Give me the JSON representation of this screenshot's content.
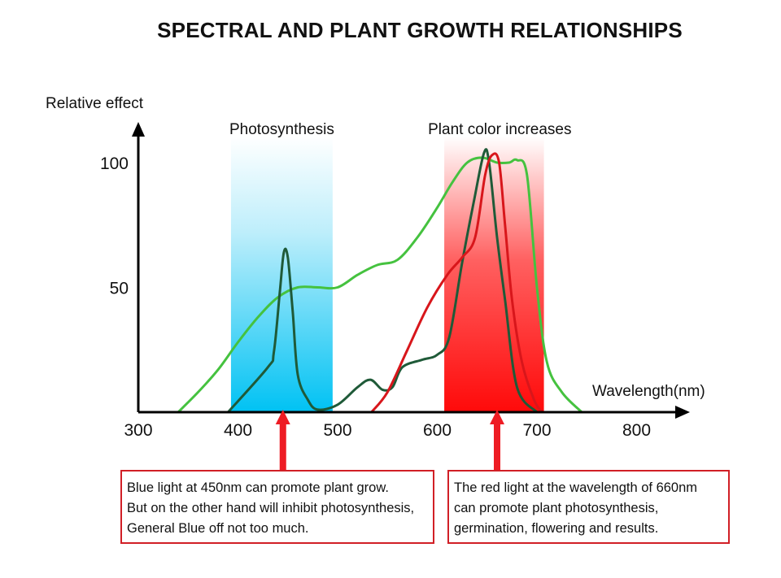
{
  "title": "SPECTRAL AND PLANT GROWTH RELATIONSHIPS",
  "chart_data": {
    "type": "line",
    "title": "SPECTRAL AND PLANT GROWTH RELATIONSHIPS",
    "xlabel": "Wavelength(nm)",
    "ylabel": "Relative effect",
    "xlim": [
      300,
      840
    ],
    "ylim": [
      0,
      110
    ],
    "x_ticks": [
      300,
      400,
      500,
      600,
      700,
      800
    ],
    "y_ticks": [
      50,
      100
    ],
    "bands": [
      {
        "label": "Photosynthesis",
        "range": [
          393,
          495
        ],
        "color": "#10c4f2"
      },
      {
        "label": "Plant color increases",
        "range": [
          607,
          707
        ],
        "color": "#ff1a1a"
      }
    ],
    "series": [
      {
        "name": "light-green",
        "color": "#45c23f",
        "points": [
          [
            340,
            0
          ],
          [
            360,
            8
          ],
          [
            380,
            17
          ],
          [
            400,
            28
          ],
          [
            420,
            38
          ],
          [
            440,
            46
          ],
          [
            460,
            50
          ],
          [
            480,
            50
          ],
          [
            500,
            50
          ],
          [
            520,
            55
          ],
          [
            540,
            59
          ],
          [
            560,
            61
          ],
          [
            580,
            70
          ],
          [
            600,
            82
          ],
          [
            615,
            92
          ],
          [
            630,
            100
          ],
          [
            645,
            102
          ],
          [
            660,
            100
          ],
          [
            672,
            100
          ],
          [
            680,
            101
          ],
          [
            690,
            95
          ],
          [
            700,
            50
          ],
          [
            710,
            20
          ],
          [
            725,
            8
          ],
          [
            745,
            0
          ]
        ]
      },
      {
        "name": "dark-green",
        "color": "#1f5a38",
        "points": [
          [
            390,
            0
          ],
          [
            430,
            18
          ],
          [
            436,
            24
          ],
          [
            442,
            48
          ],
          [
            446,
            64
          ],
          [
            450,
            62
          ],
          [
            455,
            40
          ],
          [
            460,
            15
          ],
          [
            470,
            5
          ],
          [
            480,
            1
          ],
          [
            500,
            3
          ],
          [
            520,
            10
          ],
          [
            533,
            13
          ],
          [
            545,
            9
          ],
          [
            555,
            10
          ],
          [
            565,
            18
          ],
          [
            585,
            21
          ],
          [
            600,
            23
          ],
          [
            612,
            30
          ],
          [
            625,
            60
          ],
          [
            637,
            85
          ],
          [
            647,
            104
          ],
          [
            652,
            100
          ],
          [
            660,
            70
          ],
          [
            668,
            45
          ],
          [
            680,
            10
          ],
          [
            700,
            0
          ]
        ]
      },
      {
        "name": "red",
        "color": "#d8161b",
        "points": [
          [
            534,
            0
          ],
          [
            550,
            8
          ],
          [
            570,
            25
          ],
          [
            590,
            42
          ],
          [
            610,
            55
          ],
          [
            625,
            62
          ],
          [
            638,
            70
          ],
          [
            648,
            95
          ],
          [
            655,
            103
          ],
          [
            662,
            100
          ],
          [
            668,
            75
          ],
          [
            675,
            45
          ],
          [
            685,
            20
          ],
          [
            697,
            5
          ],
          [
            705,
            0
          ]
        ]
      }
    ],
    "annotations": [
      {
        "text": "Blue light at 450nm can promote plant grow.\nBut on the other hand will inhibit photosynthesis,\nGeneral Blue off not too much.",
        "x": 450
      },
      {
        "text": "The red light at the wavelength of 660nm\ncan promote plant photosynthesis,\ngermination, flowering and results.",
        "x": 660
      }
    ]
  },
  "notes": {
    "blue": {
      "line1": "Blue light at 450nm can promote plant grow.",
      "line2": "But on the other hand will inhibit photosynthesis,",
      "line3": "General Blue off not too much."
    },
    "red": {
      "line1": "The red light at the wavelength of 660nm",
      "line2": "can promote plant photosynthesis,",
      "line3": "germination, flowering and results."
    }
  },
  "colors": {
    "arrow": "#ee1c24",
    "box_border": "#d11f26",
    "axis": "#000000"
  }
}
